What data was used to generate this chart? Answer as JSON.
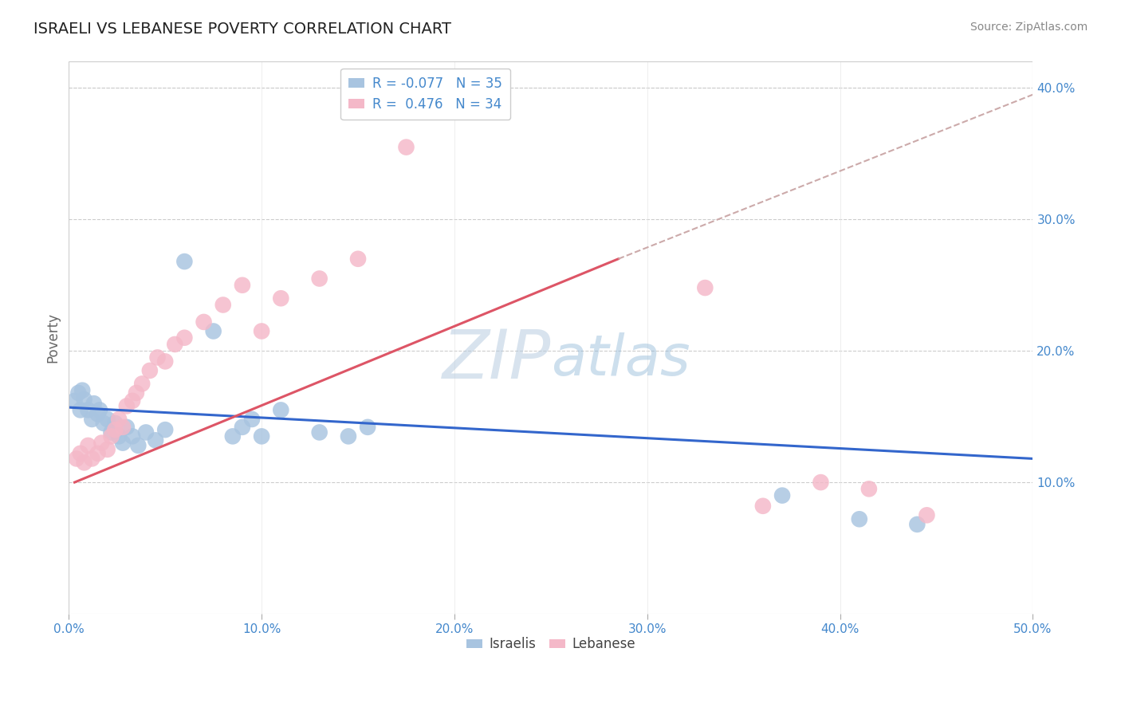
{
  "title": "ISRAELI VS LEBANESE POVERTY CORRELATION CHART",
  "source": "Source: ZipAtlas.com",
  "ylabel": "Poverty",
  "xlim": [
    0.0,
    0.5
  ],
  "ylim": [
    0.0,
    0.42
  ],
  "xticks": [
    0.0,
    0.1,
    0.2,
    0.3,
    0.4,
    0.5
  ],
  "yticks": [
    0.1,
    0.2,
    0.3,
    0.4
  ],
  "ytick_labels": [
    "10.0%",
    "20.0%",
    "30.0%",
    "40.0%"
  ],
  "xtick_labels": [
    "0.0%",
    "10.0%",
    "20.0%",
    "30.0%",
    "40.0%",
    "50.0%"
  ],
  "R_israeli": -0.077,
  "N_israeli": 35,
  "R_lebanese": 0.476,
  "N_lebanese": 34,
  "israeli_color": "#a8c4e0",
  "lebanese_color": "#f4b8c8",
  "israeli_line_color": "#3366cc",
  "lebanese_line_color": "#dd5566",
  "dashed_line_color": "#ccaaaa",
  "background_color": "#ffffff",
  "watermark_zip": "ZIP",
  "watermark_atlas": "atlas",
  "israeli_points_x": [
    0.003,
    0.005,
    0.006,
    0.007,
    0.008,
    0.01,
    0.012,
    0.013,
    0.015,
    0.016,
    0.018,
    0.02,
    0.022,
    0.024,
    0.026,
    0.028,
    0.03,
    0.033,
    0.036,
    0.04,
    0.045,
    0.05,
    0.06,
    0.075,
    0.085,
    0.09,
    0.095,
    0.1,
    0.11,
    0.13,
    0.145,
    0.155,
    0.37,
    0.41,
    0.44
  ],
  "israeli_points_y": [
    0.162,
    0.168,
    0.155,
    0.17,
    0.163,
    0.155,
    0.148,
    0.16,
    0.152,
    0.155,
    0.145,
    0.148,
    0.138,
    0.145,
    0.135,
    0.13,
    0.142,
    0.135,
    0.128,
    0.138,
    0.132,
    0.14,
    0.268,
    0.215,
    0.135,
    0.142,
    0.148,
    0.135,
    0.155,
    0.138,
    0.135,
    0.142,
    0.09,
    0.072,
    0.068
  ],
  "lebanese_points_x": [
    0.004,
    0.006,
    0.008,
    0.01,
    0.012,
    0.015,
    0.017,
    0.02,
    0.022,
    0.024,
    0.026,
    0.028,
    0.03,
    0.033,
    0.035,
    0.038,
    0.042,
    0.046,
    0.05,
    0.055,
    0.06,
    0.07,
    0.08,
    0.09,
    0.1,
    0.11,
    0.13,
    0.15,
    0.175,
    0.33,
    0.36,
    0.39,
    0.415,
    0.445
  ],
  "lebanese_points_y": [
    0.118,
    0.122,
    0.115,
    0.128,
    0.118,
    0.122,
    0.13,
    0.125,
    0.135,
    0.14,
    0.148,
    0.142,
    0.158,
    0.162,
    0.168,
    0.175,
    0.185,
    0.195,
    0.192,
    0.205,
    0.21,
    0.222,
    0.235,
    0.25,
    0.215,
    0.24,
    0.255,
    0.27,
    0.355,
    0.248,
    0.082,
    0.1,
    0.095,
    0.075
  ],
  "israeli_line_x": [
    0.0,
    0.5
  ],
  "israeli_line_y": [
    0.157,
    0.118
  ],
  "lebanese_line_x": [
    0.003,
    0.285
  ],
  "lebanese_line_y": [
    0.1,
    0.27
  ],
  "dashed_line_x": [
    0.285,
    0.5
  ],
  "dashed_line_y": [
    0.27,
    0.395
  ]
}
